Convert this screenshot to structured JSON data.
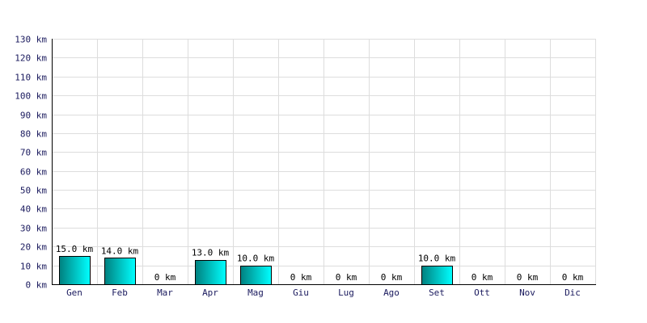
{
  "chart_data": {
    "type": "bar",
    "categories": [
      "Gen",
      "Feb",
      "Mar",
      "Apr",
      "Mag",
      "Giu",
      "Lug",
      "Ago",
      "Set",
      "Ott",
      "Nov",
      "Dic"
    ],
    "values": [
      15.0,
      14.0,
      0,
      13.0,
      10.0,
      0,
      0,
      0,
      10.0,
      0,
      0,
      0
    ],
    "value_labels": [
      "15.0 km",
      "14.0 km",
      "0 km",
      "13.0 km",
      "10.0 km",
      "0 km",
      "0 km",
      "0 km",
      "10.0 km",
      "0 km",
      "0 km",
      "0 km"
    ],
    "y_ticks": [
      0,
      10,
      20,
      30,
      40,
      50,
      60,
      70,
      80,
      90,
      100,
      110,
      120,
      130
    ],
    "y_tick_labels": [
      "0 km",
      "10 km",
      "20 km",
      "30 km",
      "40 km",
      "50 km",
      "60 km",
      "70 km",
      "80 km",
      "90 km",
      "100 km",
      "110 km",
      "120 km",
      "130 km"
    ],
    "ylim": [
      0,
      130
    ],
    "grid": true,
    "legend": "none",
    "colors": {
      "bar_dark": "#00807f",
      "bar_light": "#00ffff",
      "grid": "#dddddd",
      "tick_text": "#1a1a5e"
    }
  }
}
